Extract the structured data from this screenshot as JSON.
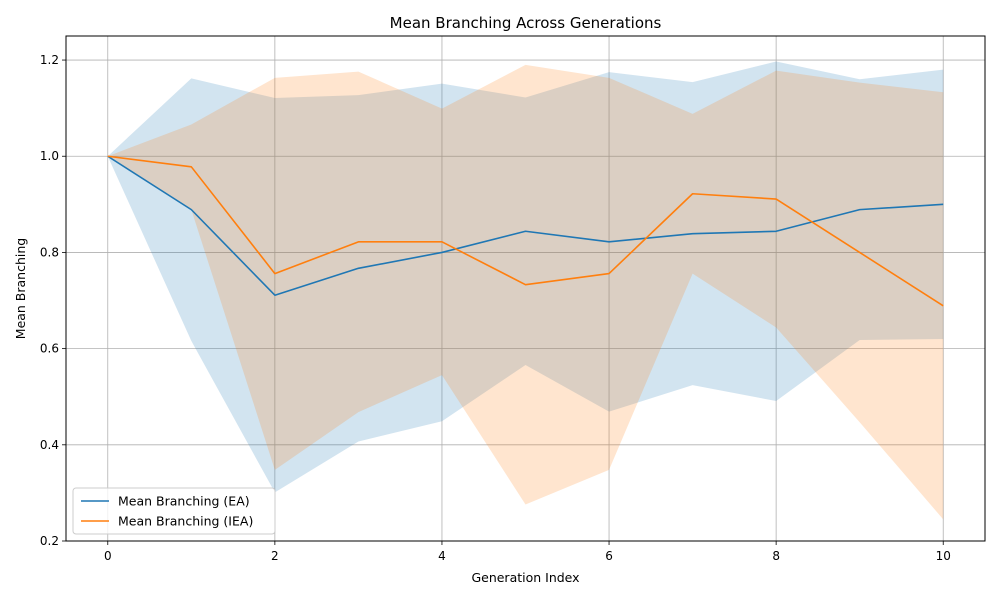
{
  "chart_data": {
    "type": "line",
    "title": "Mean Branching Across Generations",
    "xlabel": "Generation Index",
    "ylabel": "Mean Branching",
    "xlim": [
      -0.5,
      10.5
    ],
    "ylim": [
      0.2,
      1.25
    ],
    "xticks": [
      0,
      2,
      4,
      6,
      8,
      10
    ],
    "yticks": [
      0.2,
      0.4,
      0.6,
      0.8,
      1.0,
      1.2
    ],
    "grid": true,
    "legend_position": "lower-left",
    "x": [
      0,
      1,
      2,
      3,
      4,
      5,
      6,
      7,
      8,
      9,
      10
    ],
    "series": [
      {
        "name": "Mean Branching (EA)",
        "color": "#1f77b4",
        "values": [
          1.0,
          0.889,
          0.711,
          0.767,
          0.8,
          0.844,
          0.822,
          0.839,
          0.844,
          0.889,
          0.9
        ],
        "upper": [
          1.0,
          1.162,
          1.121,
          1.127,
          1.151,
          1.122,
          1.175,
          1.154,
          1.197,
          1.16,
          1.18
        ],
        "lower": [
          1.0,
          0.616,
          0.301,
          0.407,
          0.449,
          0.566,
          0.469,
          0.524,
          0.491,
          0.618,
          0.62
        ],
        "band_color": "#1f77b4",
        "band_opacity": 0.2
      },
      {
        "name": "Mean Branching (IEA)",
        "color": "#ff7f0e",
        "values": [
          1.0,
          0.978,
          0.756,
          0.822,
          0.822,
          0.733,
          0.756,
          0.922,
          0.911,
          0.8,
          0.689
        ],
        "upper": [
          1.0,
          1.066,
          1.163,
          1.176,
          1.099,
          1.19,
          1.163,
          1.088,
          1.178,
          1.153,
          1.133
        ],
        "lower": [
          1.0,
          0.889,
          0.348,
          0.468,
          0.545,
          0.276,
          0.348,
          0.756,
          0.644,
          0.447,
          0.245
        ],
        "band_color": "#ff7f0e",
        "band_opacity": 0.2
      }
    ]
  }
}
